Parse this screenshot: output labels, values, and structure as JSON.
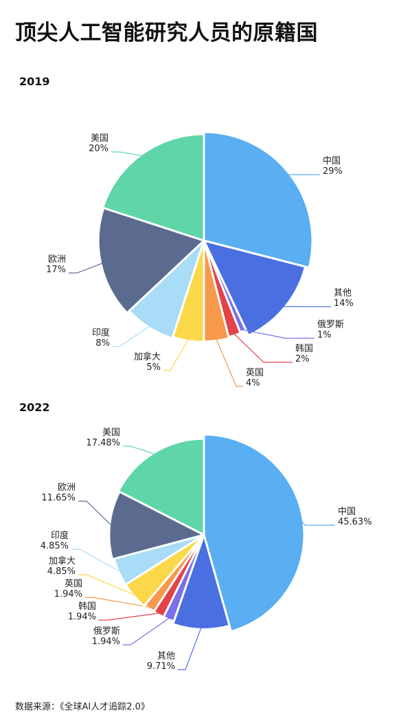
{
  "title": "顶尖人工智能研究人员的原籍国",
  "source": "数据来源：《全球AI人才追踪2.0》",
  "chart_data": [
    {
      "type": "pie",
      "title": "2019",
      "slices": [
        {
          "label": "中国",
          "value": 29,
          "display": "29%",
          "color": "#5aaef2"
        },
        {
          "label": "其他",
          "value": 14,
          "display": "14%",
          "color": "#4a6fe0"
        },
        {
          "label": "俄罗斯",
          "value": 1,
          "display": "1%",
          "color": "#7a6fe6"
        },
        {
          "label": "韩国",
          "value": 2,
          "display": "2%",
          "color": "#e2434a"
        },
        {
          "label": "英国",
          "value": 4,
          "display": "4%",
          "color": "#f7984a"
        },
        {
          "label": "加拿大",
          "value": 5,
          "display": "5%",
          "color": "#fbd84a"
        },
        {
          "label": "印度",
          "value": 8,
          "display": "8%",
          "color": "#a9dcf6"
        },
        {
          "label": "欧洲",
          "value": 17,
          "display": "17%",
          "color": "#5b6b8f"
        },
        {
          "label": "美国",
          "value": 20,
          "display": "20%",
          "color": "#5fd6a7"
        }
      ]
    },
    {
      "type": "pie",
      "title": "2022",
      "slices": [
        {
          "label": "中国",
          "value": 45.63,
          "display": "45.63%",
          "color": "#5aaef2"
        },
        {
          "label": "其他",
          "value": 9.71,
          "display": "9.71%",
          "color": "#4a6fe0"
        },
        {
          "label": "俄罗斯",
          "value": 1.94,
          "display": "1.94%",
          "color": "#7a6fe6"
        },
        {
          "label": "韩国",
          "value": 1.94,
          "display": "1.94%",
          "color": "#e2434a"
        },
        {
          "label": "英国",
          "value": 1.94,
          "display": "1.94%",
          "color": "#f7984a"
        },
        {
          "label": "加拿大",
          "value": 4.85,
          "display": "4.85%",
          "color": "#fbd84a"
        },
        {
          "label": "印度",
          "value": 4.85,
          "display": "4.85%",
          "color": "#a9dcf6"
        },
        {
          "label": "欧洲",
          "value": 11.65,
          "display": "11.65%",
          "color": "#5b6b8f"
        },
        {
          "label": "美国",
          "value": 17.48,
          "display": "17.48%",
          "color": "#5fd6a7"
        }
      ]
    }
  ]
}
